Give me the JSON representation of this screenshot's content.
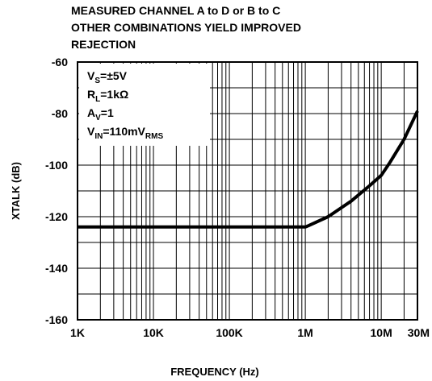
{
  "chart_data": {
    "type": "line",
    "title_lines": [
      "MEASURED CHANNEL A to D or B to C",
      "OTHER COMBINATIONS YIELD IMPROVED",
      "REJECTION"
    ],
    "xlabel": "FREQUENCY (Hz)",
    "ylabel": "XTALK (dB)",
    "x_scale": "log",
    "xlim": [
      1000,
      30000000
    ],
    "ylim": [
      -160,
      -60
    ],
    "x_ticks": [
      {
        "value": 1000,
        "label": "1K"
      },
      {
        "value": 10000,
        "label": "10K"
      },
      {
        "value": 100000,
        "label": "100K"
      },
      {
        "value": 1000000,
        "label": "1M"
      },
      {
        "value": 10000000,
        "label": "10M"
      },
      {
        "value": 30000000,
        "label": "30M"
      }
    ],
    "y_ticks": [
      {
        "value": -60,
        "label": "-60"
      },
      {
        "value": -80,
        "label": "-80"
      },
      {
        "value": -100,
        "label": "-100"
      },
      {
        "value": -120,
        "label": "-120"
      },
      {
        "value": -140,
        "label": "-140"
      },
      {
        "value": -160,
        "label": "-160"
      }
    ],
    "grid": true,
    "y_grid_step": 10,
    "conditions": [
      {
        "main": "V",
        "sub": "S",
        "rest": "=±5V"
      },
      {
        "main": "R",
        "sub": "L",
        "rest": "=1kΩ"
      },
      {
        "main": "A",
        "sub": "V",
        "rest": "=1"
      },
      {
        "main": "V",
        "sub": "IN",
        "rest": "=110mV",
        "sub2": "RMS"
      }
    ],
    "series": [
      {
        "x": [
          1000,
          10000,
          100000,
          1000000,
          1100000,
          2000000,
          4000000,
          7000000,
          10000000,
          13000000,
          20000000,
          30000000
        ],
        "values": [
          -124,
          -124,
          -124,
          -124,
          -123.5,
          -120,
          -114,
          -108,
          -104,
          -99,
          -90,
          -79
        ]
      }
    ]
  }
}
